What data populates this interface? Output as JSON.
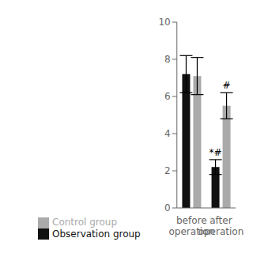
{
  "chart_data": {
    "type": "bar",
    "categories": [
      "before\noperation",
      "after\noperation"
    ],
    "series": [
      {
        "name": "Observation group",
        "color": "#111111",
        "values": [
          7.2,
          2.2
        ],
        "errors": [
          1.0,
          0.4
        ],
        "annotations": [
          null,
          "*#"
        ]
      },
      {
        "name": "Control group",
        "color": "#aaaaaa",
        "values": [
          7.1,
          5.5
        ],
        "errors": [
          1.0,
          0.7
        ],
        "annotations": [
          null,
          "#"
        ]
      }
    ],
    "ylim": [
      0,
      10
    ],
    "yticks": [
      0,
      2,
      4,
      6,
      8,
      10
    ],
    "grid": false,
    "legend": "lower left"
  }
}
